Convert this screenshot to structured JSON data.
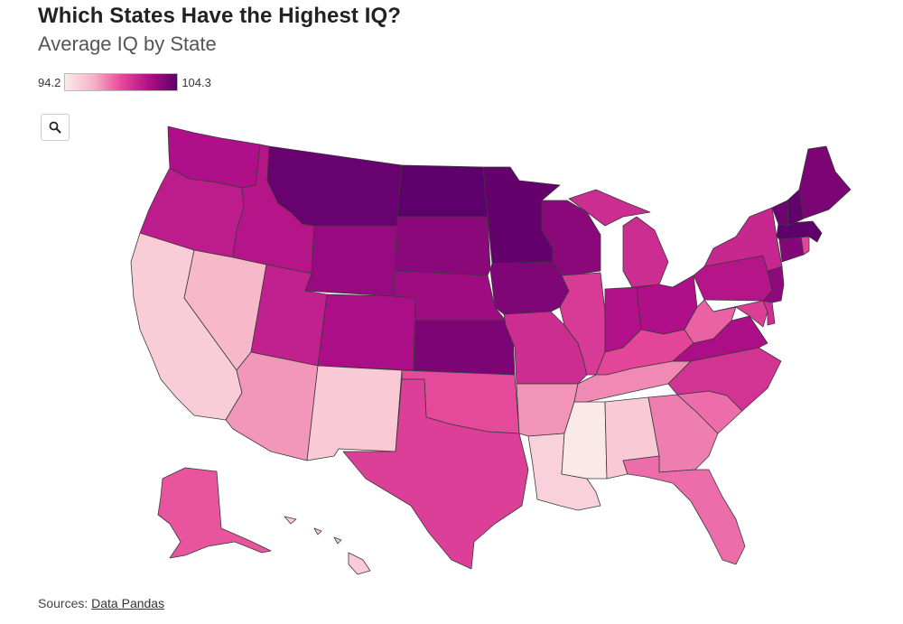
{
  "header": {
    "title": "Which States Have the Highest IQ?",
    "subtitle": "Average IQ by State"
  },
  "legend": {
    "min_label": "94.2",
    "max_label": "104.3",
    "min": 94.2,
    "max": 104.3,
    "colors": [
      "#fbe9ea",
      "#f7b3c6",
      "#e64a9a",
      "#b00f88",
      "#5d006b"
    ]
  },
  "toolbar": {
    "search_icon": "search-icon"
  },
  "footer": {
    "prefix": "Sources: ",
    "link_label": "Data Pandas"
  },
  "chart_data": {
    "type": "choropleth",
    "title": "Which States Have the Highest IQ?",
    "subtitle": "Average IQ by State",
    "range": [
      94.2,
      104.3
    ],
    "values": {
      "WA": 101.8,
      "OR": 101.2,
      "CA": 95.5,
      "NV": 96.5,
      "ID": 101.5,
      "MT": 104.0,
      "WY": 102.5,
      "UT": 101.0,
      "AZ": 97.4,
      "CO": 101.9,
      "NM": 95.7,
      "ND": 104.3,
      "SD": 102.9,
      "NE": 102.3,
      "KS": 103.4,
      "OK": 99.3,
      "TX": 99.7,
      "MN": 104.1,
      "IA": 103.3,
      "MO": 100.5,
      "AR": 97.5,
      "LA": 95.3,
      "WI": 102.9,
      "IL": 99.9,
      "MS": 94.2,
      "MI": 100.5,
      "IN": 101.7,
      "KY": 99.4,
      "TN": 97.7,
      "AL": 95.7,
      "OH": 101.8,
      "GA": 98.0,
      "FL": 98.4,
      "SC": 98.4,
      "NC": 100.2,
      "VA": 101.9,
      "WV": 98.7,
      "PA": 101.5,
      "NY": 100.7,
      "NJ": 102.8,
      "DE": 100.4,
      "MD": 99.7,
      "CT": 103.1,
      "RI": 99.5,
      "MA": 104.3,
      "VT": 103.8,
      "NH": 104.2,
      "ME": 103.4,
      "AK": 99.0,
      "HI": 95.6
    }
  }
}
